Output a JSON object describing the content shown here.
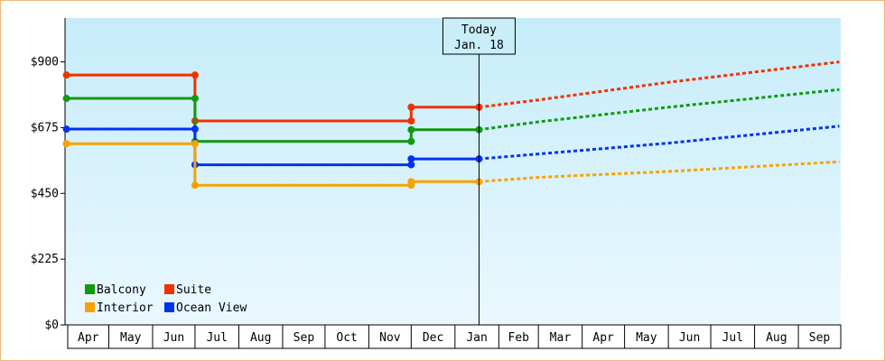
{
  "chart_data": {
    "type": "line",
    "y_ticks": [
      "$0",
      "$225",
      "$450",
      "$675",
      "$900"
    ],
    "ylim": [
      0,
      1050
    ],
    "x_tick_labels": [
      "Apr",
      "May",
      "Jun",
      "Jul",
      "Aug",
      "Sep",
      "Oct",
      "Nov",
      "Dec",
      "Jan",
      "Feb",
      "Mar",
      "Apr",
      "May",
      "Jun",
      "Jul",
      "Aug",
      "Sep"
    ],
    "today": {
      "line1": "Today",
      "line2": "Jan. 18"
    },
    "series": [
      {
        "name": "Suite",
        "color": "#ee3300",
        "history": [
          [
            "2018-04-01",
            855
          ],
          [
            "2018-07-01",
            855
          ],
          [
            "2018-07-01",
            698
          ],
          [
            "2018-12-01",
            698
          ],
          [
            "2018-12-01",
            745
          ],
          [
            "2019-01-18",
            745
          ]
        ],
        "forecast": [
          [
            "2019-01-18",
            745
          ],
          [
            "2019-03-01",
            770
          ],
          [
            "2019-06-01",
            830
          ],
          [
            "2019-09-30",
            900
          ]
        ]
      },
      {
        "name": "Balcony",
        "color": "#119911",
        "history": [
          [
            "2018-04-01",
            775
          ],
          [
            "2018-07-01",
            775
          ],
          [
            "2018-07-01",
            628
          ],
          [
            "2018-12-01",
            628
          ],
          [
            "2018-12-01",
            668
          ],
          [
            "2019-01-18",
            668
          ]
        ],
        "forecast": [
          [
            "2019-01-18",
            668
          ],
          [
            "2019-03-01",
            695
          ],
          [
            "2019-06-01",
            745
          ],
          [
            "2019-09-30",
            805
          ]
        ]
      },
      {
        "name": "Ocean View",
        "color": "#0033ee",
        "history": [
          [
            "2018-04-01",
            670
          ],
          [
            "2018-07-01",
            670
          ],
          [
            "2018-07-01",
            548
          ],
          [
            "2018-12-01",
            548
          ],
          [
            "2018-12-01",
            568
          ],
          [
            "2019-01-18",
            568
          ]
        ],
        "forecast": [
          [
            "2019-01-18",
            568
          ],
          [
            "2019-03-01",
            585
          ],
          [
            "2019-06-01",
            622
          ],
          [
            "2019-09-30",
            680
          ]
        ]
      },
      {
        "name": "Interior",
        "color": "#f5a300",
        "history": [
          [
            "2018-04-01",
            620
          ],
          [
            "2018-07-01",
            620
          ],
          [
            "2018-07-01",
            478
          ],
          [
            "2018-12-01",
            478
          ],
          [
            "2018-12-01",
            490
          ],
          [
            "2019-01-18",
            490
          ]
        ],
        "forecast": [
          [
            "2019-01-18",
            490
          ],
          [
            "2019-03-01",
            505
          ],
          [
            "2019-06-01",
            525
          ],
          [
            "2019-09-30",
            558
          ]
        ]
      }
    ],
    "legend": {
      "placement": "bottom-left",
      "rows": [
        [
          "Balcony",
          "Suite"
        ],
        [
          "Interior",
          "Ocean View"
        ]
      ]
    },
    "grid": false,
    "background_gradient": [
      "#c6ecfa",
      "#eaf8fe"
    ]
  }
}
